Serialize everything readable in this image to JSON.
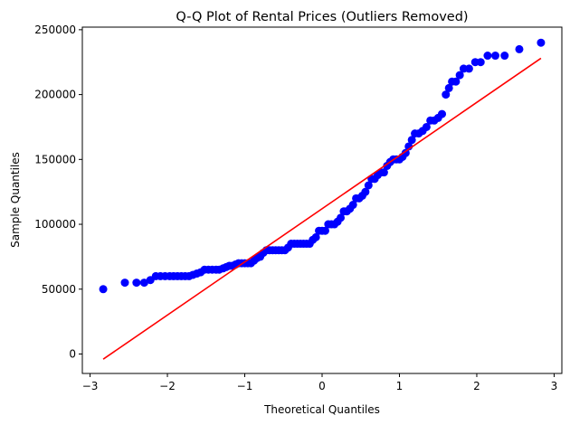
{
  "chart_data": {
    "type": "scatter",
    "title": "Q-Q Plot of Rental Prices (Outliers Removed)",
    "xlabel": "Theoretical Quantiles",
    "ylabel": "Sample Quantiles",
    "xlim": [
      -3.1,
      3.1
    ],
    "ylim": [
      -15000,
      252000
    ],
    "xticks": [
      -3,
      -2,
      -1,
      0,
      1,
      2,
      3
    ],
    "yticks": [
      0,
      50000,
      100000,
      150000,
      200000,
      250000
    ],
    "grid": false,
    "legend": "none",
    "series": [
      {
        "role": "sample-points",
        "color": "#0000ff",
        "points": [
          [
            -2.83,
            50000
          ],
          [
            -2.55,
            55000
          ],
          [
            -2.4,
            55000
          ],
          [
            -2.3,
            55000
          ],
          [
            -2.22,
            57000
          ],
          [
            -2.15,
            60000
          ],
          [
            -2.09,
            60000
          ],
          [
            -2.03,
            60000
          ],
          [
            -1.97,
            60000
          ],
          [
            -1.92,
            60000
          ],
          [
            -1.87,
            60000
          ],
          [
            -1.82,
            60000
          ],
          [
            -1.77,
            60000
          ],
          [
            -1.72,
            60000
          ],
          [
            -1.67,
            61000
          ],
          [
            -1.62,
            62000
          ],
          [
            -1.57,
            63000
          ],
          [
            -1.52,
            65000
          ],
          [
            -1.47,
            65000
          ],
          [
            -1.42,
            65000
          ],
          [
            -1.37,
            65000
          ],
          [
            -1.33,
            65000
          ],
          [
            -1.28,
            66000
          ],
          [
            -1.24,
            67000
          ],
          [
            -1.2,
            68000
          ],
          [
            -1.16,
            68000
          ],
          [
            -1.12,
            69000
          ],
          [
            -1.08,
            70000
          ],
          [
            -1.04,
            70000
          ],
          [
            -1.0,
            70000
          ],
          [
            -0.96,
            70000
          ],
          [
            -0.92,
            70000
          ],
          [
            -0.88,
            72000
          ],
          [
            -0.84,
            74000
          ],
          [
            -0.8,
            75000
          ],
          [
            -0.76,
            78000
          ],
          [
            -0.72,
            80000
          ],
          [
            -0.68,
            80000
          ],
          [
            -0.64,
            80000
          ],
          [
            -0.6,
            80000
          ],
          [
            -0.56,
            80000
          ],
          [
            -0.52,
            80000
          ],
          [
            -0.48,
            80000
          ],
          [
            -0.44,
            82000
          ],
          [
            -0.4,
            85000
          ],
          [
            -0.36,
            85000
          ],
          [
            -0.32,
            85000
          ],
          [
            -0.28,
            85000
          ],
          [
            -0.24,
            85000
          ],
          [
            -0.2,
            85000
          ],
          [
            -0.16,
            85000
          ],
          [
            -0.12,
            88000
          ],
          [
            -0.08,
            90000
          ],
          [
            -0.04,
            95000
          ],
          [
            0.0,
            95000
          ],
          [
            0.04,
            95000
          ],
          [
            0.08,
            100000
          ],
          [
            0.12,
            100000
          ],
          [
            0.16,
            100000
          ],
          [
            0.2,
            102000
          ],
          [
            0.24,
            105000
          ],
          [
            0.28,
            110000
          ],
          [
            0.32,
            110000
          ],
          [
            0.36,
            112000
          ],
          [
            0.4,
            115000
          ],
          [
            0.44,
            120000
          ],
          [
            0.48,
            120000
          ],
          [
            0.52,
            122000
          ],
          [
            0.56,
            125000
          ],
          [
            0.6,
            130000
          ],
          [
            0.64,
            135000
          ],
          [
            0.68,
            135000
          ],
          [
            0.72,
            138000
          ],
          [
            0.76,
            140000
          ],
          [
            0.8,
            140000
          ],
          [
            0.84,
            145000
          ],
          [
            0.88,
            148000
          ],
          [
            0.92,
            150000
          ],
          [
            0.96,
            150000
          ],
          [
            1.0,
            150000
          ],
          [
            1.04,
            152000
          ],
          [
            1.08,
            155000
          ],
          [
            1.12,
            160000
          ],
          [
            1.16,
            165000
          ],
          [
            1.2,
            170000
          ],
          [
            1.25,
            170000
          ],
          [
            1.3,
            172000
          ],
          [
            1.35,
            175000
          ],
          [
            1.4,
            180000
          ],
          [
            1.45,
            180000
          ],
          [
            1.5,
            182000
          ],
          [
            1.55,
            185000
          ],
          [
            1.6,
            200000
          ],
          [
            1.64,
            205000
          ],
          [
            1.68,
            210000
          ],
          [
            1.73,
            210000
          ],
          [
            1.78,
            215000
          ],
          [
            1.83,
            220000
          ],
          [
            1.9,
            220000
          ],
          [
            1.98,
            225000
          ],
          [
            2.05,
            225000
          ],
          [
            2.14,
            230000
          ],
          [
            2.24,
            230000
          ],
          [
            2.36,
            230000
          ],
          [
            2.55,
            235000
          ],
          [
            2.83,
            240000
          ]
        ]
      },
      {
        "role": "reference-line",
        "color": "#ff0000",
        "points": [
          [
            -2.83,
            -4000
          ],
          [
            2.83,
            228000
          ]
        ]
      }
    ]
  }
}
